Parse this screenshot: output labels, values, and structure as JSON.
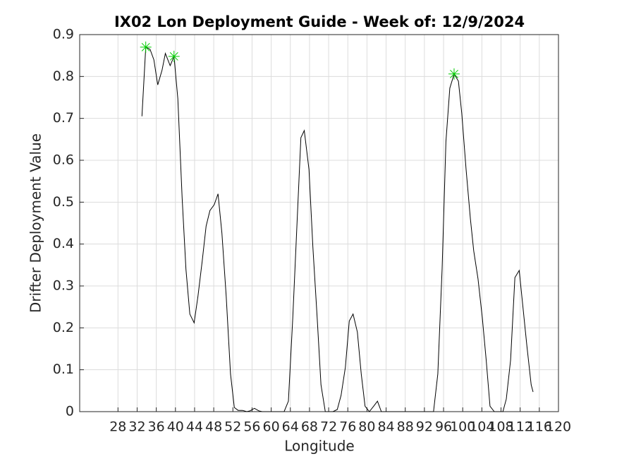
{
  "chart_data": {
    "type": "line",
    "title": "IX02 Lon Deployment Guide - Week of: 12/9/2024",
    "xlabel": "Longitude",
    "ylabel": "Drifter Deployment Value",
    "xlim": [
      20,
      120
    ],
    "ylim": [
      0,
      0.9
    ],
    "xticks": [
      28,
      32,
      36,
      40,
      44,
      48,
      52,
      56,
      60,
      64,
      68,
      72,
      76,
      80,
      84,
      88,
      92,
      96,
      100,
      104,
      108,
      112,
      116,
      120
    ],
    "yticks": [
      0,
      0.1,
      0.2,
      0.3,
      0.4,
      0.5,
      0.6,
      0.7,
      0.8,
      0.9
    ],
    "grid": true,
    "series": [
      {
        "color": "#000000",
        "x": [
          33.0,
          33.8,
          34.7,
          35.5,
          36.3,
          37.2,
          37.9,
          38.9,
          39.7,
          40.5,
          41.4,
          42.2,
          43.0,
          43.9,
          44.7,
          45.6,
          46.4,
          47.2,
          48.1,
          48.9,
          49.7,
          50.6,
          51.5,
          52.3,
          53.1,
          54.0,
          54.9,
          55.6,
          56.5,
          57.4,
          58.1,
          60.0,
          62.7,
          63.6,
          64.5,
          65.3,
          66.2,
          66.9,
          67.9,
          68.7,
          69.6,
          70.4,
          71.3,
          72.1,
          72.9,
          73.8,
          74.6,
          75.5,
          76.3,
          77.1,
          78.0,
          78.8,
          79.6,
          80.5,
          81.4,
          82.2,
          83.0,
          88.0,
          93.9,
          94.8,
          95.7,
          96.5,
          97.3,
          98.2,
          99.1,
          99.8,
          100.7,
          101.6,
          102.3,
          103.2,
          104.1,
          104.9,
          105.7,
          106.6,
          107.5,
          108.4,
          109.1,
          110.0,
          110.9,
          111.8,
          112.5,
          113.4,
          114.3,
          114.7
        ],
        "values": [
          0.705,
          0.87,
          0.865,
          0.84,
          0.78,
          0.815,
          0.855,
          0.826,
          0.848,
          0.747,
          0.51,
          0.34,
          0.233,
          0.212,
          0.275,
          0.36,
          0.443,
          0.48,
          0.494,
          0.52,
          0.426,
          0.275,
          0.09,
          0.01,
          0.003,
          0.003,
          0,
          0.002,
          0.008,
          0.002,
          0,
          0,
          0,
          0.025,
          0.224,
          0.426,
          0.654,
          0.671,
          0.578,
          0.393,
          0.224,
          0.064,
          0,
          0,
          0,
          0.005,
          0.039,
          0.106,
          0.216,
          0.233,
          0.19,
          0.09,
          0.013,
          0,
          0.013,
          0.025,
          0,
          0,
          0,
          0.09,
          0.342,
          0.645,
          0.772,
          0.806,
          0.789,
          0.713,
          0.578,
          0.46,
          0.384,
          0.317,
          0.224,
          0.123,
          0.013,
          0,
          0,
          0,
          0.03,
          0.123,
          0.32,
          0.337,
          0.258,
          0.157,
          0.064,
          0.047
        ]
      },
      {
        "color": "#00cc00",
        "marker": "asterisk",
        "x": [
          33.8,
          39.7,
          98.2
        ],
        "values": [
          0.87,
          0.848,
          0.806
        ]
      }
    ]
  }
}
